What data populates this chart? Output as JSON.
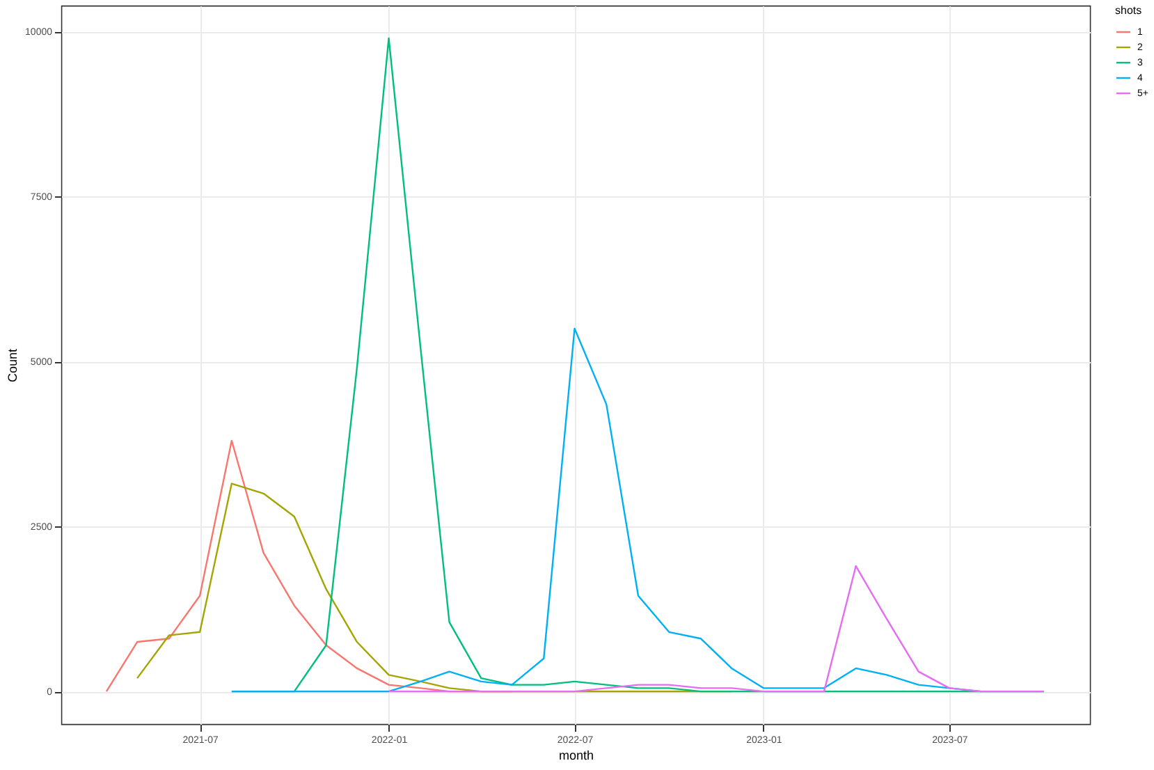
{
  "chart_data": {
    "type": "line",
    "xlabel": "month",
    "ylabel": "Count",
    "legend_title": "shots",
    "legend": "right",
    "grid": true,
    "x": [
      "2021-04",
      "2021-05",
      "2021-06",
      "2021-07",
      "2021-08",
      "2021-09",
      "2021-10",
      "2021-11",
      "2021-12",
      "2022-01",
      "2022-02",
      "2022-03",
      "2022-04",
      "2022-05",
      "2022-06",
      "2022-07",
      "2022-08",
      "2022-09",
      "2022-10",
      "2022-11",
      "2022-12",
      "2023-01",
      "2023-02",
      "2023-03",
      "2023-04",
      "2023-05",
      "2023-06",
      "2023-07",
      "2023-08",
      "2023-09",
      "2023-10"
    ],
    "xlim": [
      "2021-02-16",
      "2023-11-15"
    ],
    "xticks": [
      "2021-07",
      "2022-01",
      "2022-07",
      "2023-01",
      "2023-07"
    ],
    "ylim": [
      -495,
      10395
    ],
    "yticks": [
      0,
      2500,
      5000,
      7500,
      10000
    ],
    "series": [
      {
        "name": "1",
        "color": "#f8766d",
        "values": [
          0,
          750,
          800,
          1450,
          3800,
          2100,
          1300,
          700,
          350,
          100,
          50,
          0,
          0,
          0,
          null,
          null,
          null,
          null,
          null,
          null,
          null,
          null,
          null,
          null,
          null,
          null,
          null,
          null,
          null,
          null,
          null
        ]
      },
      {
        "name": "2",
        "color": "#a3a500",
        "values": [
          null,
          200,
          850,
          900,
          3150,
          3000,
          2650,
          1550,
          750,
          250,
          150,
          50,
          0,
          0,
          0,
          0,
          0,
          0,
          0,
          0,
          0,
          null,
          null,
          null,
          null,
          null,
          null,
          null,
          null,
          null,
          null
        ]
      },
      {
        "name": "3",
        "color": "#00bf7d",
        "values": [
          null,
          null,
          null,
          null,
          0,
          0,
          0,
          700,
          4900,
          9900,
          5200,
          1050,
          200,
          100,
          100,
          150,
          100,
          50,
          50,
          0,
          0,
          0,
          0,
          0,
          0,
          0,
          0,
          0,
          0,
          0,
          0
        ]
      },
      {
        "name": "4",
        "color": "#00b0f6",
        "values": [
          null,
          null,
          null,
          null,
          0,
          0,
          0,
          0,
          0,
          0,
          150,
          300,
          150,
          100,
          500,
          5500,
          4350,
          1450,
          900,
          800,
          350,
          50,
          50,
          50,
          350,
          250,
          100,
          50,
          0,
          null,
          null
        ]
      },
      {
        "name": "5+",
        "color": "#e76bf3",
        "values": [
          null,
          null,
          null,
          null,
          null,
          null,
          null,
          null,
          null,
          0,
          0,
          0,
          0,
          0,
          0,
          0,
          50,
          100,
          100,
          50,
          50,
          0,
          0,
          0,
          1900,
          1100,
          300,
          50,
          0,
          0,
          0
        ]
      }
    ]
  }
}
